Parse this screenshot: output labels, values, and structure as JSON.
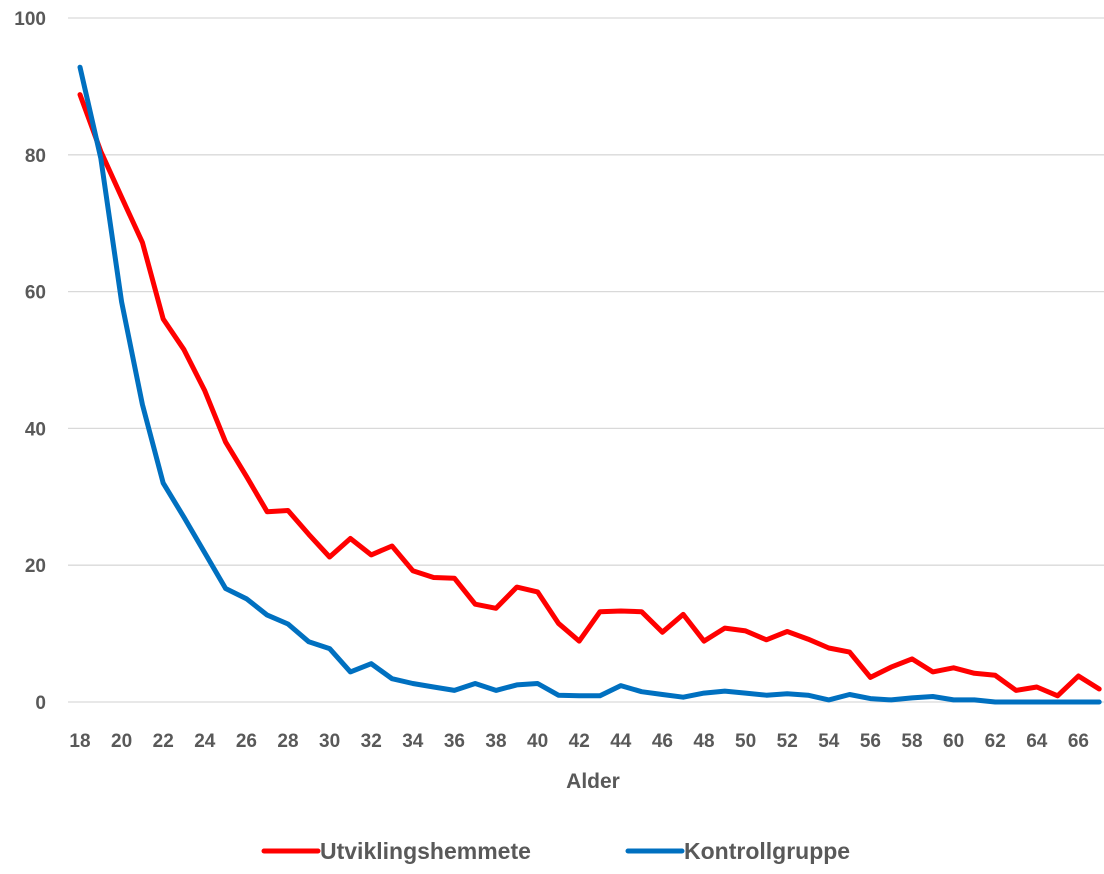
{
  "chart_data": {
    "type": "line",
    "title": "",
    "xlabel": "Alder",
    "ylabel": "",
    "ylim": [
      0,
      100
    ],
    "yticks": [
      0,
      20,
      40,
      60,
      80,
      100
    ],
    "xlim": [
      18,
      67
    ],
    "xticks": [
      18,
      20,
      22,
      24,
      26,
      28,
      30,
      32,
      34,
      36,
      38,
      40,
      42,
      44,
      46,
      48,
      50,
      52,
      54,
      56,
      58,
      60,
      62,
      64,
      66
    ],
    "grid": true,
    "legend_position": "bottom",
    "x": [
      18,
      19,
      20,
      21,
      22,
      23,
      24,
      25,
      26,
      27,
      28,
      29,
      30,
      31,
      32,
      33,
      34,
      35,
      36,
      37,
      38,
      39,
      40,
      41,
      42,
      43,
      44,
      45,
      46,
      47,
      48,
      49,
      50,
      51,
      52,
      53,
      54,
      55,
      56,
      57,
      58,
      59,
      60,
      61,
      62,
      63,
      64,
      65,
      66,
      67
    ],
    "series": [
      {
        "name": "Utviklingshemmete",
        "color": "#ff0000",
        "values": [
          88.8,
          80.5,
          73.8,
          67.2,
          56.0,
          51.5,
          45.5,
          38.0,
          33.0,
          27.8,
          28.0,
          24.5,
          21.2,
          23.9,
          21.5,
          22.8,
          19.2,
          18.2,
          18.1,
          14.3,
          13.7,
          16.8,
          16.1,
          11.5,
          8.9,
          13.2,
          13.3,
          13.2,
          10.2,
          12.8,
          8.9,
          10.8,
          10.4,
          9.1,
          10.3,
          9.2,
          7.9,
          7.3,
          3.6,
          5.1,
          6.3,
          4.4,
          5.0,
          4.2,
          3.9,
          1.7,
          2.2,
          0.9,
          3.8,
          1.9
        ]
      },
      {
        "name": "Kontrollgruppe",
        "color": "#0070c0",
        "values": [
          92.8,
          79.5,
          58.5,
          43.5,
          32.0,
          27.0,
          21.8,
          16.6,
          15.1,
          12.7,
          11.4,
          8.8,
          7.8,
          4.4,
          5.6,
          3.4,
          2.7,
          2.2,
          1.7,
          2.7,
          1.7,
          2.5,
          2.7,
          1.0,
          0.9,
          0.9,
          2.4,
          1.5,
          1.1,
          0.7,
          1.3,
          1.6,
          1.3,
          1.0,
          1.2,
          1.0,
          0.3,
          1.1,
          0.5,
          0.3,
          0.6,
          0.8,
          0.3,
          0.3,
          0.0,
          0.0,
          0.0,
          0.0,
          0.0,
          0.0
        ]
      }
    ]
  }
}
